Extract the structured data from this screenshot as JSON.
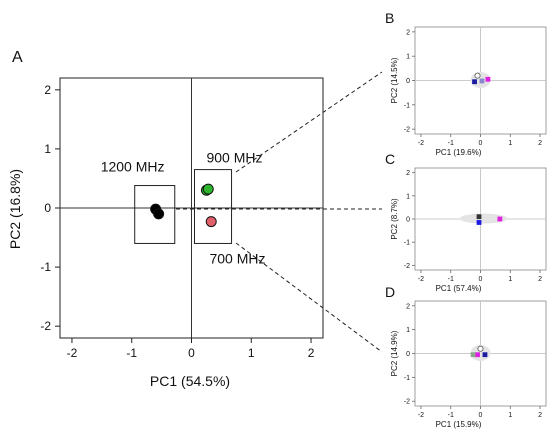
{
  "chart_data": [
    {
      "panel_label": "A",
      "type": "scatter",
      "xlabel": "PC1 (54.5%)",
      "ylabel": "PC2 (16.8%)",
      "xlim": [
        -2.2,
        2.2
      ],
      "ylim": [
        -2.2,
        2.2
      ],
      "xticks": [
        "-2",
        "-1",
        "0",
        "1",
        "2"
      ],
      "yticks": [
        "-2",
        "-1",
        "0",
        "1",
        "2"
      ],
      "colors": {
        "black": "#000000",
        "green": "#2db52d",
        "red": "#e0606a"
      },
      "points": [
        {
          "x": -0.6,
          "y": -0.02,
          "color": "#000000"
        },
        {
          "x": -0.55,
          "y": -0.1,
          "color": "#000000"
        },
        {
          "x": 0.25,
          "y": 0.3,
          "color": "#2db52d"
        },
        {
          "x": 0.28,
          "y": 0.32,
          "color": "#2db52d"
        },
        {
          "x": 0.33,
          "y": -0.23,
          "color": "#e0606a"
        }
      ],
      "groups": [
        {
          "label": "1200 MHz",
          "xmin": -0.95,
          "xmax": -0.28,
          "ymin": -0.6,
          "ymax": 0.38
        },
        {
          "label": "900 MHz",
          "xmin": 0.05,
          "xmax": 0.67,
          "ymin": 0.0,
          "ymax": 0.65
        },
        {
          "label": "700 MHz",
          "xmin": 0.05,
          "xmax": 0.67,
          "ymin": -0.6,
          "ymax": 0.0
        }
      ]
    },
    {
      "panel_label": "B",
      "type": "scatter",
      "xlabel": "PC1 (19.6%)",
      "ylabel": "PC2 (14.5%)",
      "xlim": [
        -2.2,
        2.2
      ],
      "ylim": [
        -2.2,
        2.2
      ],
      "xticks": [
        "-2",
        "-1",
        "0",
        "1",
        "2"
      ],
      "yticks": [
        "-2",
        "-1",
        "0",
        "1",
        "2"
      ],
      "points": [
        {
          "x": -0.1,
          "y": 0.2,
          "shape": "circle-open",
          "color": "#666666"
        },
        {
          "x": 0.25,
          "y": 0.05,
          "shape": "square",
          "color": "#e020e0"
        },
        {
          "x": -0.2,
          "y": -0.05,
          "shape": "square",
          "color": "#1a1aa0"
        },
        {
          "x": 0.05,
          "y": -0.02,
          "shape": "square",
          "color": "#8888cc"
        }
      ]
    },
    {
      "panel_label": "C",
      "type": "scatter",
      "xlabel": "PC1 (57.4%)",
      "ylabel": "PC2 (8.7%)",
      "xlim": [
        -2.2,
        2.2
      ],
      "ylim": [
        -2.2,
        2.2
      ],
      "xticks": [
        "-2",
        "-1",
        "0",
        "1",
        "2"
      ],
      "yticks": [
        "-2",
        "-1",
        "0",
        "1",
        "2"
      ],
      "points": [
        {
          "x": -0.05,
          "y": 0.1,
          "shape": "square",
          "color": "#333333"
        },
        {
          "x": -0.05,
          "y": -0.15,
          "shape": "square",
          "color": "#1a1ae0"
        },
        {
          "x": 0.65,
          "y": 0.0,
          "shape": "square",
          "color": "#e020e0"
        }
      ]
    },
    {
      "panel_label": "D",
      "type": "scatter",
      "xlabel": "PC1 (15.9%)",
      "ylabel": "PC2 (14.9%)",
      "xlim": [
        -2.2,
        2.2
      ],
      "ylim": [
        -2.2,
        2.2
      ],
      "xticks": [
        "-2",
        "-1",
        "0",
        "1",
        "2"
      ],
      "yticks": [
        "-2",
        "-1",
        "0",
        "1",
        "2"
      ],
      "points": [
        {
          "x": 0.0,
          "y": 0.2,
          "shape": "circle-open",
          "color": "#666666"
        },
        {
          "x": -0.1,
          "y": -0.05,
          "shape": "square",
          "color": "#e020e0"
        },
        {
          "x": 0.15,
          "y": -0.05,
          "shape": "square",
          "color": "#1a1aa0"
        },
        {
          "x": -0.25,
          "y": -0.05,
          "shape": "square",
          "color": "#88aa88"
        }
      ]
    }
  ]
}
